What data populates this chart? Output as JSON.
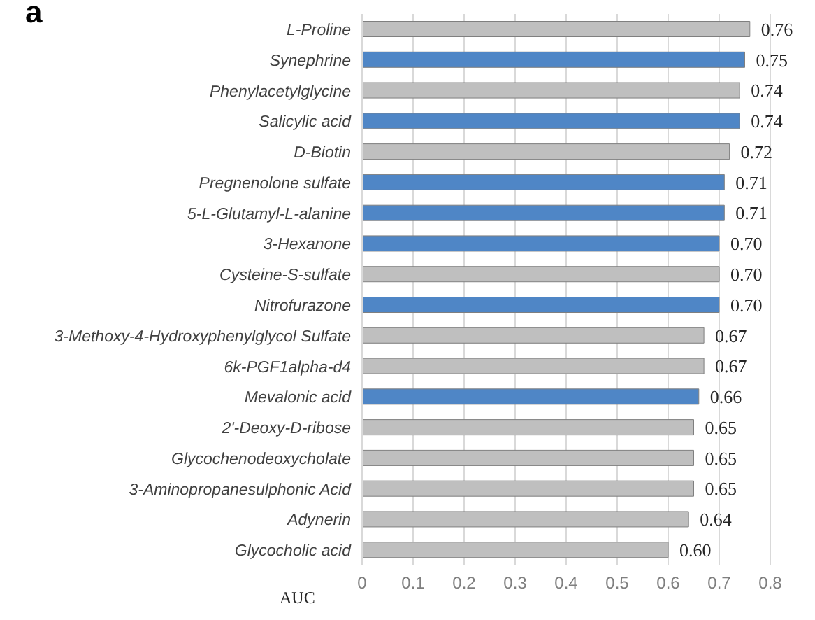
{
  "chart_data": {
    "type": "bar",
    "orientation": "horizontal",
    "xlabel": "AUC",
    "annotations": [
      "a"
    ],
    "categories": [
      "L-Proline",
      "Synephrine",
      "Phenylacetylglycine",
      "Salicylic acid",
      "D-Biotin",
      "Pregnenolone sulfate",
      "5-L-Glutamyl-L-alanine",
      "3-Hexanone",
      "Cysteine-S-sulfate",
      "Nitrofurazone",
      "3-Methoxy-4-Hydroxyphenylglycol Sulfate",
      "6k-PGF1alpha-d4",
      "Mevalonic acid",
      "2'-Deoxy-D-ribose",
      "Glycochenodeoxycholate",
      "3-Aminopropanesulphonic Acid",
      "Adynerin",
      "Glycocholic acid"
    ],
    "values": [
      0.76,
      0.75,
      0.74,
      0.74,
      0.72,
      0.71,
      0.71,
      0.7,
      0.7,
      0.7,
      0.67,
      0.67,
      0.66,
      0.65,
      0.65,
      0.65,
      0.64,
      0.6
    ],
    "colors": [
      "#bfbfbf",
      "#4f86c6",
      "#bfbfbf",
      "#4f86c6",
      "#bfbfbf",
      "#4f86c6",
      "#4f86c6",
      "#4f86c6",
      "#bfbfbf",
      "#4f86c6",
      "#bfbfbf",
      "#bfbfbf",
      "#4f86c6",
      "#bfbfbf",
      "#bfbfbf",
      "#bfbfbf",
      "#bfbfbf",
      "#bfbfbf"
    ],
    "value_labels": [
      "0.76",
      "0.75",
      "0.74",
      "0.74",
      "0.72",
      "0.71",
      "0.71",
      "0.70",
      "0.70",
      "0.70",
      "0.67",
      "0.67",
      "0.66",
      "0.65",
      "0.65",
      "0.65",
      "0.64",
      "0.60"
    ],
    "xlim": [
      0,
      0.8
    ],
    "xticks": [
      0,
      0.1,
      0.2,
      0.3,
      0.4,
      0.5,
      0.6,
      0.7,
      0.8
    ],
    "grid": "x"
  }
}
